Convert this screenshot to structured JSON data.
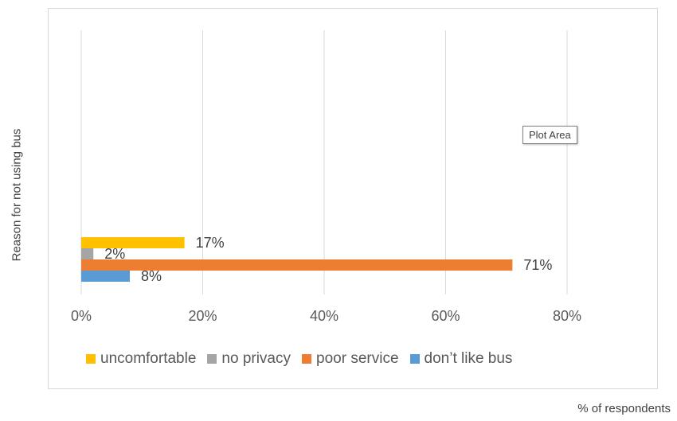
{
  "chart_data": {
    "type": "bar",
    "orientation": "horizontal",
    "title": "",
    "xlabel": "% of respondents",
    "ylabel": "Reason for not using bus",
    "xlim": [
      0,
      0.8
    ],
    "xticks": [
      "0%",
      "20%",
      "40%",
      "60%",
      "80%"
    ],
    "grid": true,
    "legend_position": "bottom",
    "series": [
      {
        "name": "uncomfortable",
        "value": 0.17,
        "label": "17%",
        "color": "#ffc000"
      },
      {
        "name": "no privacy",
        "value": 0.02,
        "label": "2%",
        "color": "#a5a5a5"
      },
      {
        "name": "poor service",
        "value": 0.71,
        "label": "71%",
        "color": "#ed7d31"
      },
      {
        "name": "don’t like bus",
        "value": 0.08,
        "label": "8%",
        "color": "#5b9bd5"
      }
    ]
  },
  "tooltip": {
    "text": "Plot Area"
  }
}
